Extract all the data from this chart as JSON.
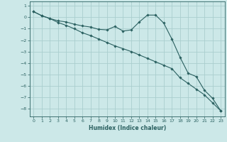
{
  "xlabel": "Humidex (Indice chaleur)",
  "background_color": "#cce8e8",
  "grid_color": "#aacece",
  "line_color": "#2a6060",
  "xlim": [
    -0.5,
    23.5
  ],
  "ylim": [
    -8.7,
    1.4
  ],
  "x_ticks": [
    0,
    1,
    2,
    3,
    4,
    5,
    6,
    7,
    8,
    9,
    10,
    11,
    12,
    13,
    14,
    15,
    16,
    17,
    18,
    19,
    20,
    21,
    22,
    23
  ],
  "y_ticks": [
    1,
    0,
    -1,
    -2,
    -3,
    -4,
    -5,
    -6,
    -7,
    -8
  ],
  "line1_x": [
    0,
    1,
    2,
    3,
    4,
    5,
    6,
    7,
    8,
    9,
    10,
    11,
    12,
    13,
    14,
    15,
    16,
    17,
    18,
    19,
    20,
    21,
    22,
    23
  ],
  "line1_y": [
    0.5,
    0.15,
    -0.1,
    -0.3,
    -0.4,
    -0.6,
    -0.75,
    -0.85,
    -1.05,
    -1.1,
    -0.8,
    -1.2,
    -1.1,
    -0.4,
    0.2,
    0.2,
    -0.5,
    -1.9,
    -3.5,
    -4.9,
    -5.2,
    -6.4,
    -7.1,
    -8.2
  ],
  "line2_x": [
    0,
    1,
    2,
    3,
    4,
    5,
    6,
    7,
    8,
    9,
    10,
    11,
    12,
    13,
    14,
    15,
    16,
    17,
    18,
    19,
    20,
    21,
    22,
    23
  ],
  "line2_y": [
    0.5,
    0.15,
    -0.1,
    -0.45,
    -0.7,
    -1.0,
    -1.35,
    -1.6,
    -1.9,
    -2.2,
    -2.5,
    -2.75,
    -3.0,
    -3.3,
    -3.6,
    -3.9,
    -4.2,
    -4.5,
    -5.3,
    -5.8,
    -6.3,
    -6.8,
    -7.5,
    -8.2
  ]
}
